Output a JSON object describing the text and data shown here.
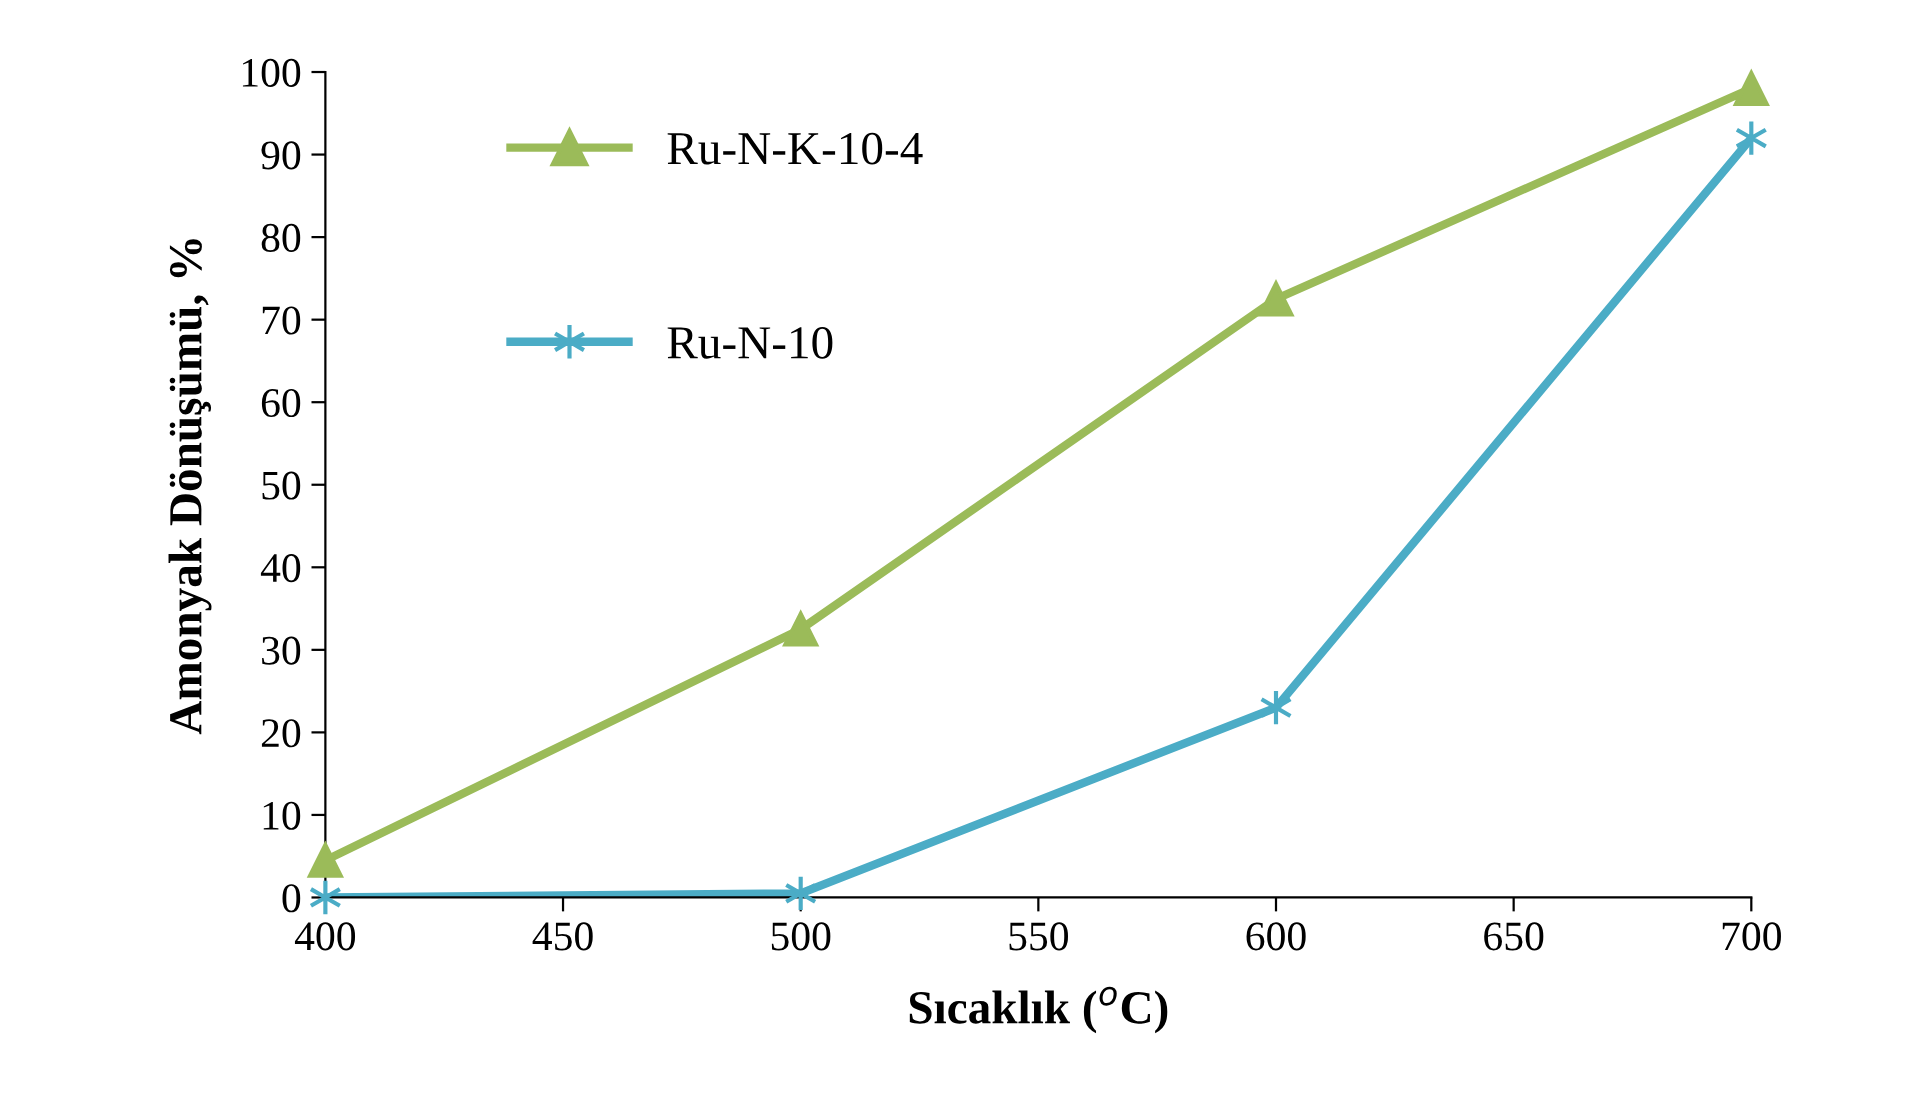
{
  "chart_data": {
    "type": "line",
    "xlabel": "Sıcaklık ($^{o}$C)",
    "ylabel": "Amonyak Dönüşümü, %",
    "x": [
      400,
      500,
      600,
      700
    ],
    "series": [
      {
        "name": "Ru-N-K-10-4",
        "color": "#9bbb59",
        "marker": "triangle",
        "values": [
          4.5,
          32.5,
          72.5,
          98
        ]
      },
      {
        "name": "Ru-N-10",
        "color": "#4bacc6",
        "marker": "cross",
        "values": [
          0,
          0.5,
          23,
          92
        ]
      }
    ],
    "xlim": [
      400,
      700
    ],
    "xticks": [
      400,
      450,
      500,
      550,
      600,
      650,
      700
    ],
    "ylim": [
      0,
      100
    ],
    "yticks": [
      0,
      10,
      20,
      30,
      40,
      50,
      60,
      70,
      80,
      90,
      100
    ],
    "grid": false,
    "legend": "top left",
    "line_style": "solid"
  }
}
